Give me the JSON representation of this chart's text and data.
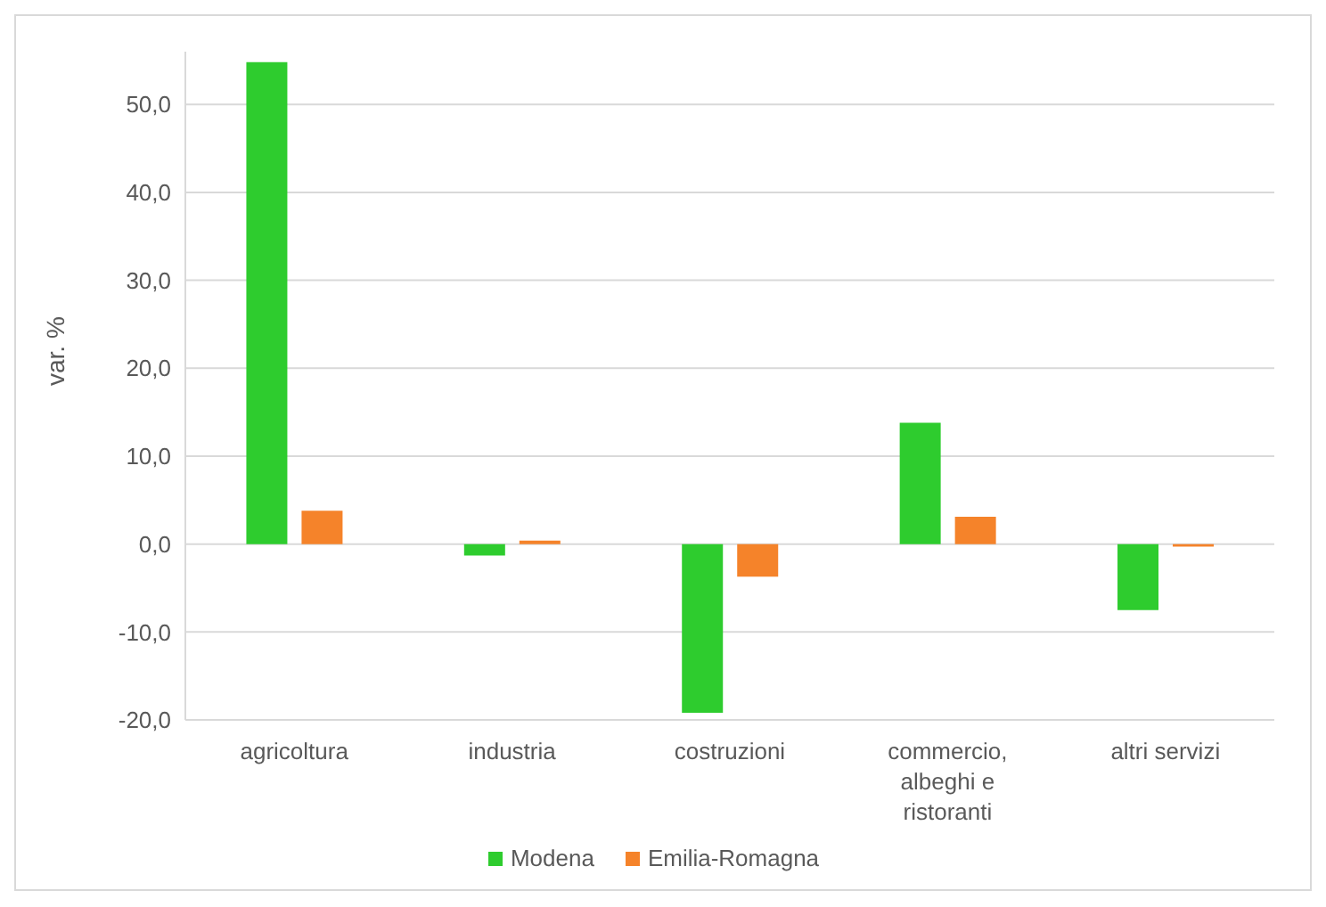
{
  "chart_data": {
    "type": "bar",
    "ylabel": "var. %",
    "categories": [
      "agricoltura",
      "industria",
      "costruzioni",
      "commercio, albeghi e ristoranti",
      "altri servizi"
    ],
    "series": [
      {
        "name": "Modena",
        "color": "#2ecc2e",
        "values": [
          54.8,
          -1.3,
          -19.2,
          13.8,
          -7.5
        ]
      },
      {
        "name": "Emilia-Romagna",
        "color": "#f5832a",
        "values": [
          3.8,
          0.4,
          -3.7,
          3.1,
          -0.3
        ]
      }
    ],
    "ylim": [
      -20,
      56
    ],
    "yticks": [
      {
        "value": -20,
        "label": "-20,0"
      },
      {
        "value": -10,
        "label": "-10,0"
      },
      {
        "value": 0,
        "label": "0,0"
      },
      {
        "value": 10,
        "label": "10,0"
      },
      {
        "value": 20,
        "label": "20,0"
      },
      {
        "value": 30,
        "label": "30,0"
      },
      {
        "value": 40,
        "label": "40,0"
      },
      {
        "value": 50,
        "label": "50,0"
      }
    ],
    "grid": "y",
    "legend": "bottom"
  }
}
